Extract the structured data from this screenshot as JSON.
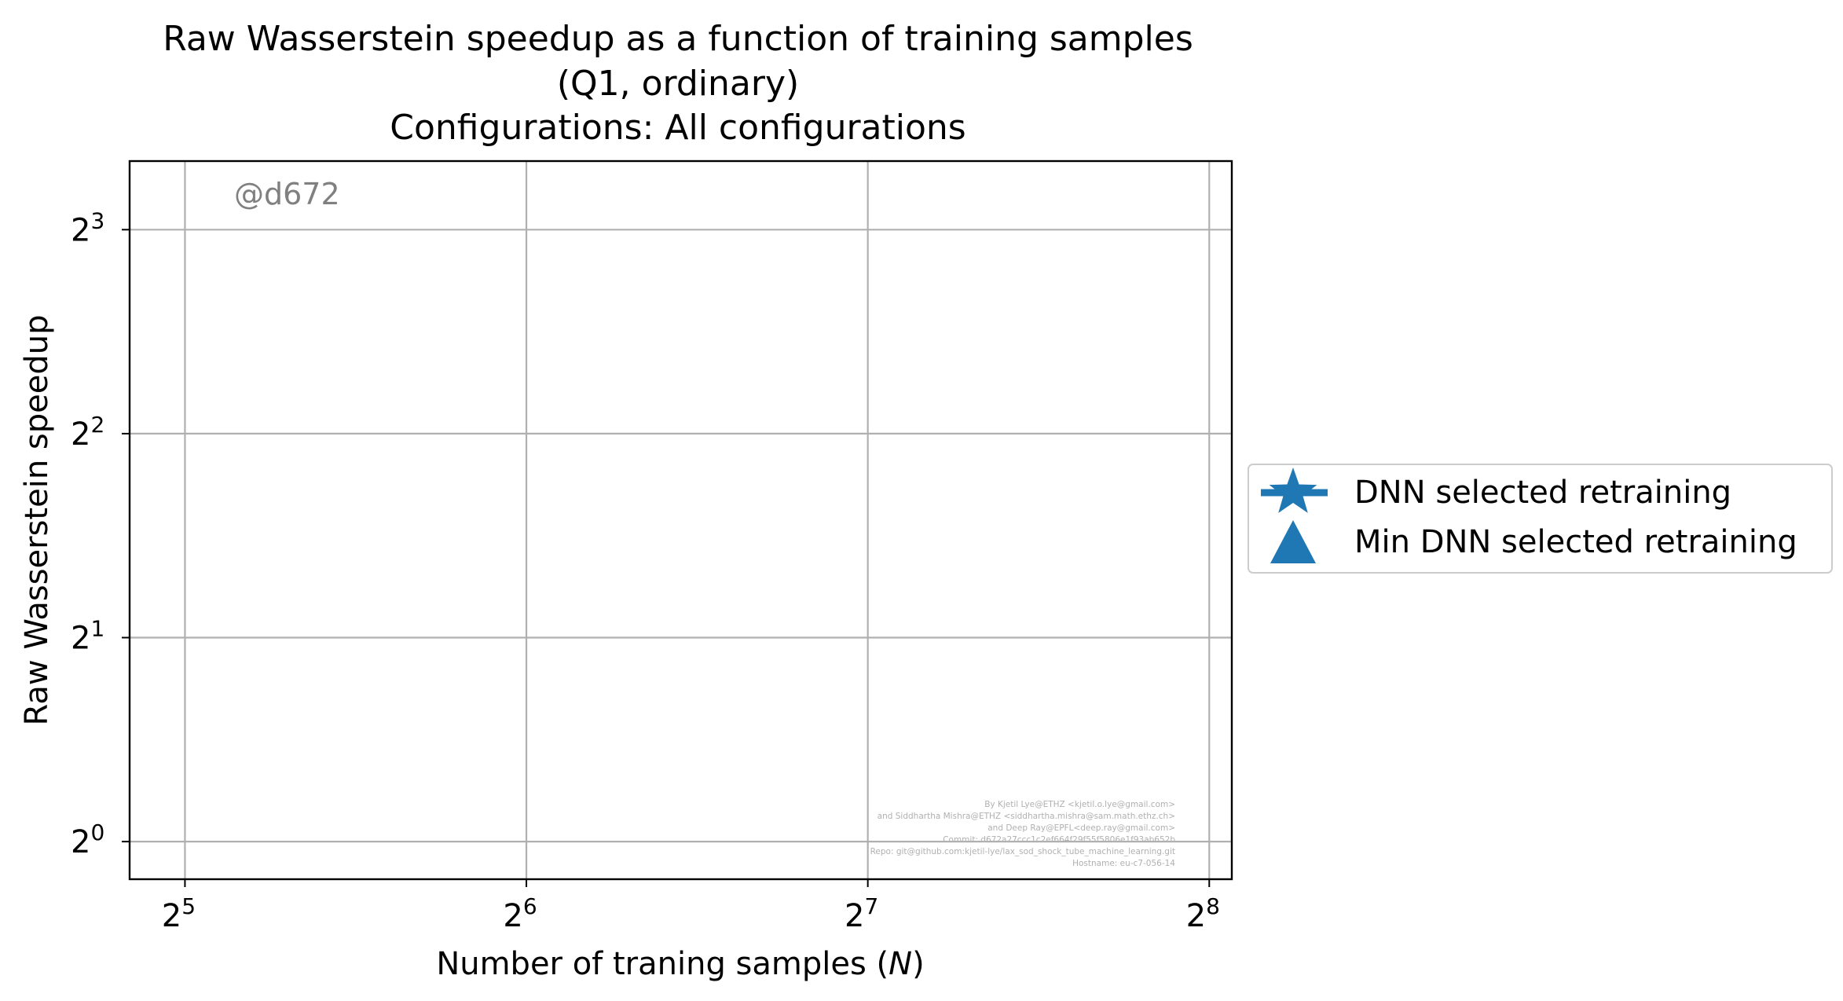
{
  "chart_data": {
    "type": "scatter",
    "title": [
      "Raw Wasserstein speedup as a function of training samples",
      "(Q1, ordinary)",
      "Configurations: All configurations"
    ],
    "xlabel": "Number of traning samples (N)",
    "ylabel": "Raw Wasserstein speedup",
    "xscale": "log2",
    "yscale": "log2",
    "xlim": [
      28.6,
      268
    ],
    "ylim": [
      0.88,
      10.1
    ],
    "x_ticks": [
      {
        "value": 32,
        "base": "2",
        "exp": "5"
      },
      {
        "value": 64,
        "base": "2",
        "exp": "6"
      },
      {
        "value": 128,
        "base": "2",
        "exp": "7"
      },
      {
        "value": 256,
        "base": "2",
        "exp": "8"
      }
    ],
    "y_ticks": [
      {
        "value": 1,
        "base": "2",
        "exp": "0"
      },
      {
        "value": 2,
        "base": "2",
        "exp": "1"
      },
      {
        "value": 4,
        "base": "2",
        "exp": "2"
      },
      {
        "value": 8,
        "base": "2",
        "exp": "3"
      }
    ],
    "grid": true,
    "legend_position": "center-right-outside",
    "series": [
      {
        "name": "DNN selected retraining",
        "marker": "star",
        "color": "#1f77b4",
        "points": []
      },
      {
        "name": "Min DNN selected retraining",
        "marker": "triangle",
        "color": "#1f77b4",
        "points": []
      }
    ],
    "annotations": {
      "commit_tag": "@d672",
      "credits": [
        "By Kjetil Lye@ETHZ <kjetil.o.lye@gmail.com>",
        "and Siddhartha Mishra@ETHZ <siddhartha.mishra@sam.math.ethz.ch>",
        "and Deep Ray@EPFL<deep.ray@gmail.com>",
        "Commit: d672a27ccc1c2ef664f29f55f5806e1f93ab652b",
        "Repo: git@github.com:kjetil-lye/lax_sod_shock_tube_machine_learning.git",
        "Hostname: eu-c7-056-14"
      ]
    }
  }
}
